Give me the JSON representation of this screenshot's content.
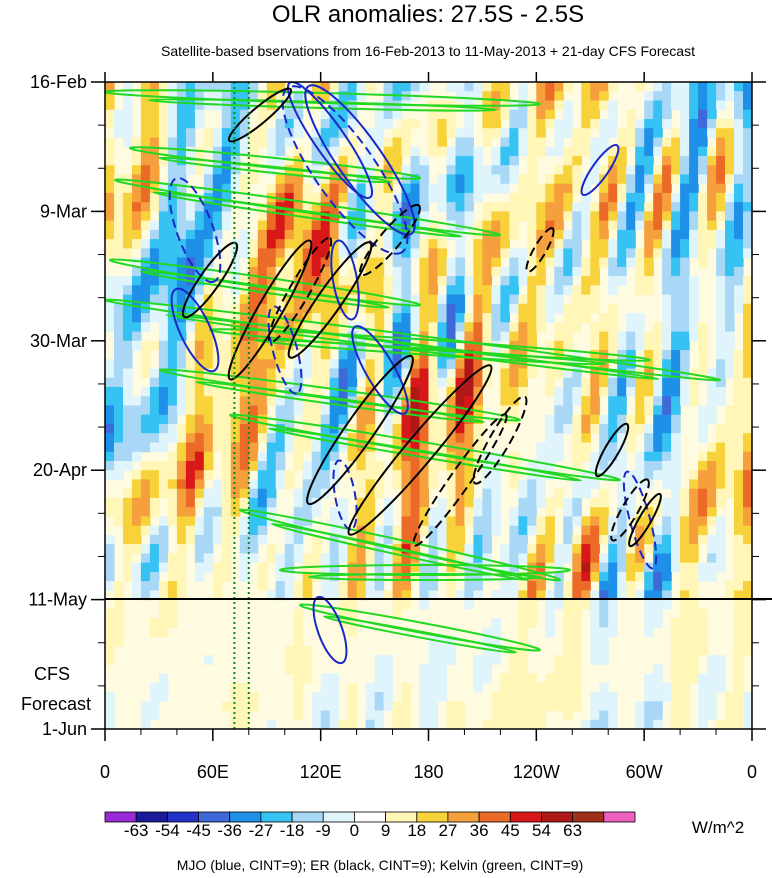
{
  "chart_data": {
    "type": "heatmap",
    "title": "OLR anomalies: 27.5S - 2.5S",
    "subtitle": "Satellite-based bservations from 16-Feb-2013 to 11-May-2013 + 21-day CFS Forecast",
    "x_ticks": [
      "0",
      "60E",
      "120E",
      "180",
      "120W",
      "60W",
      "0"
    ],
    "x_tick_longitudes": [
      0,
      60,
      120,
      180,
      240,
      300,
      360
    ],
    "y_ticks": [
      "16-Feb",
      "9-Mar",
      "30-Mar",
      "20-Apr",
      "11-May",
      "1-Jun"
    ],
    "y_tick_days": [
      0,
      21,
      42,
      63,
      84,
      105
    ],
    "observation_end_day": 84,
    "forecast_label": [
      "CFS",
      "Forecast"
    ],
    "colorbar": {
      "levels": [
        "-63",
        "-54",
        "-45",
        "-36",
        "-27",
        "-18",
        "-9",
        "0",
        "9",
        "18",
        "27",
        "36",
        "45",
        "54",
        "63"
      ],
      "colors": [
        "#9a2ad6",
        "#1a1a9a",
        "#2232c8",
        "#3d6ad8",
        "#1e90e8",
        "#36c2f2",
        "#a8d8f6",
        "#dff4fb",
        "#ffffff",
        "#fff6b8",
        "#f7d23a",
        "#f5a03c",
        "#ec6a28",
        "#d81818",
        "#b01818",
        "#a0301a",
        "#f060c0"
      ],
      "units": "W/m^2"
    },
    "contour_legend": "MJO (blue, CINT=9); ER (black, CINT=9); Kelvin (green, CINT=9)",
    "contour_colors": {
      "mjo": "#1a28c8",
      "er": "#000000",
      "kelvin": "#22d822"
    },
    "reference_lines": {
      "longitudes": [
        72,
        80
      ],
      "color": "#0a8a1a",
      "style": "dotted"
    }
  }
}
